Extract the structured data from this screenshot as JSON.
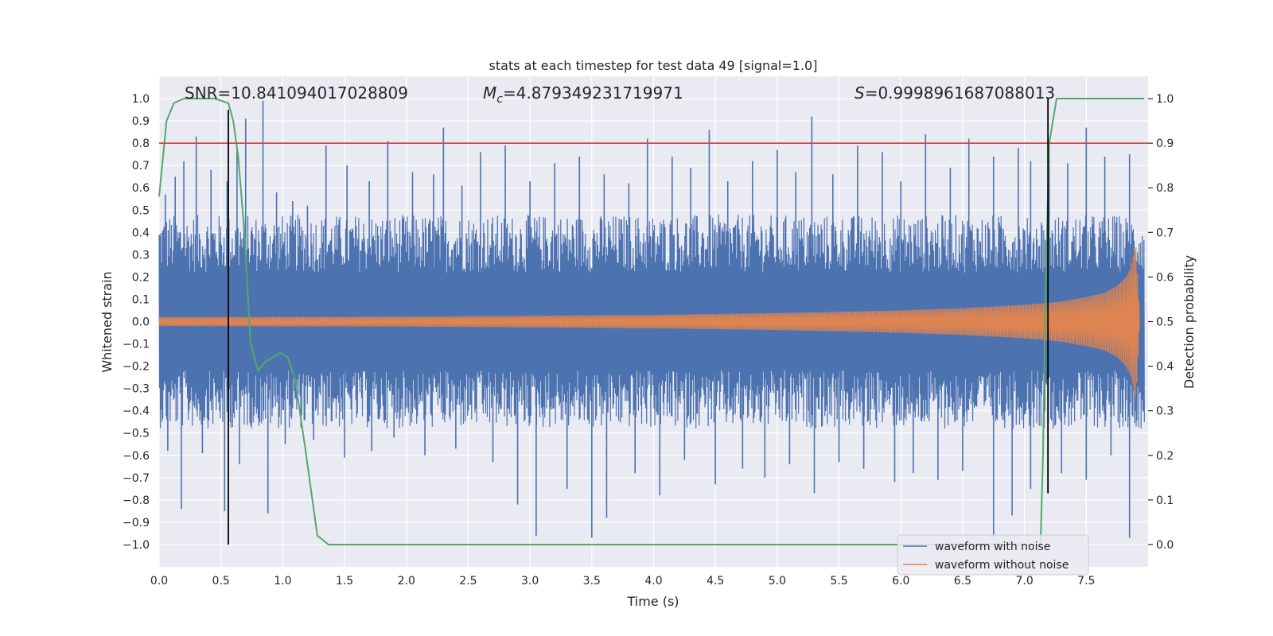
{
  "chart_data": {
    "type": "line",
    "title": "stats at each timestep for test data 49 [signal=1.0]",
    "xlabel": "Time (s)",
    "ylabel": "Whitened strain",
    "y2label": "Detection probability",
    "xlim": [
      0.0,
      8.0
    ],
    "ylim": [
      -1.1,
      1.1
    ],
    "y2lim": [
      -0.05,
      1.05
    ],
    "xticks": [
      "0.0",
      "0.5",
      "1.0",
      "1.5",
      "2.0",
      "2.5",
      "3.0",
      "3.5",
      "4.0",
      "4.5",
      "5.0",
      "5.5",
      "6.0",
      "6.5",
      "7.0",
      "7.5"
    ],
    "yticks": [
      "1.0",
      "0.9",
      "0.8",
      "0.7",
      "0.6",
      "0.5",
      "0.4",
      "0.3",
      "0.2",
      "0.1",
      "0.0",
      "−0.1",
      "−0.2",
      "−0.3",
      "−0.4",
      "−0.5",
      "−0.6",
      "−0.7",
      "−0.8",
      "−0.9",
      "−1.0"
    ],
    "y2ticks": [
      "1.0",
      "0.9",
      "0.8",
      "0.7",
      "0.6",
      "0.5",
      "0.4",
      "0.3",
      "0.2",
      "0.1",
      "0.0"
    ],
    "annotations": {
      "snr": "SNR=10.841094017028809",
      "mc_symbol": "M",
      "mc_sub": "c",
      "mc_value": "=4.879349231719971",
      "s_symbol": "S",
      "s_value": "=0.9998961687088013"
    },
    "threshold": {
      "value": 0.9,
      "axis": "y2",
      "color": "#c44e52"
    },
    "vertical_markers": [
      {
        "x": 0.56,
        "y_top": 0.95,
        "y_bottom": -1.0
      },
      {
        "x": 7.19,
        "y_top": 1.0,
        "y_bottom": -0.77
      }
    ],
    "series": [
      {
        "name": "waveform with noise",
        "color": "#4c72b0",
        "kind": "noise",
        "band_low": -0.4,
        "band_high": 0.4,
        "spikes": [
          {
            "x": 0.05,
            "y": 0.57
          },
          {
            "x": 0.13,
            "y": 0.65
          },
          {
            "x": 0.2,
            "y": 0.72
          },
          {
            "x": 0.3,
            "y": 0.83
          },
          {
            "x": 0.42,
            "y": 0.68
          },
          {
            "x": 0.55,
            "y": 0.63
          },
          {
            "x": 0.63,
            "y": 0.78
          },
          {
            "x": 0.7,
            "y": 0.91
          },
          {
            "x": 0.84,
            "y": 0.99
          },
          {
            "x": 0.95,
            "y": 0.58
          },
          {
            "x": 1.08,
            "y": 0.54
          },
          {
            "x": 1.2,
            "y": 0.52
          },
          {
            "x": 1.35,
            "y": 0.79
          },
          {
            "x": 1.52,
            "y": 0.7
          },
          {
            "x": 1.7,
            "y": 0.63
          },
          {
            "x": 1.85,
            "y": 0.81
          },
          {
            "x": 2.05,
            "y": 0.67
          },
          {
            "x": 2.22,
            "y": 0.66
          },
          {
            "x": 2.3,
            "y": 0.87
          },
          {
            "x": 2.45,
            "y": 0.61
          },
          {
            "x": 2.6,
            "y": 0.76
          },
          {
            "x": 2.8,
            "y": 0.79
          },
          {
            "x": 3.0,
            "y": 0.63
          },
          {
            "x": 3.2,
            "y": 0.71
          },
          {
            "x": 3.4,
            "y": 0.74
          },
          {
            "x": 3.6,
            "y": 0.66
          },
          {
            "x": 3.8,
            "y": 0.62
          },
          {
            "x": 3.95,
            "y": 0.82
          },
          {
            "x": 4.15,
            "y": 0.74
          },
          {
            "x": 4.3,
            "y": 0.69
          },
          {
            "x": 4.45,
            "y": 0.86
          },
          {
            "x": 4.6,
            "y": 0.63
          },
          {
            "x": 4.8,
            "y": 0.72
          },
          {
            "x": 5.0,
            "y": 0.77
          },
          {
            "x": 5.15,
            "y": 0.67
          },
          {
            "x": 5.28,
            "y": 0.92
          },
          {
            "x": 5.45,
            "y": 0.66
          },
          {
            "x": 5.65,
            "y": 0.79
          },
          {
            "x": 5.85,
            "y": 0.76
          },
          {
            "x": 6.0,
            "y": 0.63
          },
          {
            "x": 6.2,
            "y": 0.84
          },
          {
            "x": 6.4,
            "y": 0.69
          },
          {
            "x": 6.55,
            "y": 0.82
          },
          {
            "x": 6.75,
            "y": 0.74
          },
          {
            "x": 6.95,
            "y": 0.78
          },
          {
            "x": 7.05,
            "y": 0.72
          },
          {
            "x": 7.2,
            "y": 0.78
          },
          {
            "x": 7.35,
            "y": 0.71
          },
          {
            "x": 7.5,
            "y": 0.87
          },
          {
            "x": 7.65,
            "y": 0.74
          },
          {
            "x": 7.85,
            "y": 0.75
          },
          {
            "x": 0.07,
            "y": -0.58
          },
          {
            "x": 0.18,
            "y": -0.84
          },
          {
            "x": 0.35,
            "y": -0.59
          },
          {
            "x": 0.53,
            "y": -0.85
          },
          {
            "x": 0.65,
            "y": -0.64
          },
          {
            "x": 0.88,
            "y": -0.86
          },
          {
            "x": 1.02,
            "y": -0.55
          },
          {
            "x": 1.25,
            "y": -0.53
          },
          {
            "x": 1.5,
            "y": -0.61
          },
          {
            "x": 1.72,
            "y": -0.58
          },
          {
            "x": 1.9,
            "y": -0.52
          },
          {
            "x": 2.15,
            "y": -0.6
          },
          {
            "x": 2.4,
            "y": -0.57
          },
          {
            "x": 2.7,
            "y": -0.63
          },
          {
            "x": 2.9,
            "y": -0.82
          },
          {
            "x": 3.05,
            "y": -0.96
          },
          {
            "x": 3.3,
            "y": -0.75
          },
          {
            "x": 3.5,
            "y": -0.97
          },
          {
            "x": 3.62,
            "y": -0.88
          },
          {
            "x": 3.85,
            "y": -0.68
          },
          {
            "x": 4.05,
            "y": -0.78
          },
          {
            "x": 4.25,
            "y": -0.62
          },
          {
            "x": 4.5,
            "y": -0.73
          },
          {
            "x": 4.72,
            "y": -0.66
          },
          {
            "x": 4.9,
            "y": -0.7
          },
          {
            "x": 5.1,
            "y": -0.64
          },
          {
            "x": 5.3,
            "y": -0.77
          },
          {
            "x": 5.5,
            "y": -0.63
          },
          {
            "x": 5.7,
            "y": -0.66
          },
          {
            "x": 5.95,
            "y": -0.72
          },
          {
            "x": 6.1,
            "y": -0.68
          },
          {
            "x": 6.3,
            "y": -0.71
          },
          {
            "x": 6.5,
            "y": -0.67
          },
          {
            "x": 6.75,
            "y": -0.97
          },
          {
            "x": 6.9,
            "y": -0.87
          },
          {
            "x": 7.05,
            "y": -0.75
          },
          {
            "x": 7.3,
            "y": -0.68
          },
          {
            "x": 7.5,
            "y": -0.71
          },
          {
            "x": 7.7,
            "y": -0.6
          },
          {
            "x": 7.85,
            "y": -0.97
          }
        ]
      },
      {
        "name": "waveform without noise",
        "color": "#dd8452",
        "kind": "chirp",
        "points": [
          {
            "x": 0.0,
            "y": 0.02
          },
          {
            "x": 2.0,
            "y": 0.022
          },
          {
            "x": 4.0,
            "y": 0.03
          },
          {
            "x": 5.0,
            "y": 0.038
          },
          {
            "x": 6.0,
            "y": 0.05
          },
          {
            "x": 6.5,
            "y": 0.06
          },
          {
            "x": 7.0,
            "y": 0.075
          },
          {
            "x": 7.3,
            "y": 0.09
          },
          {
            "x": 7.5,
            "y": 0.11
          },
          {
            "x": 7.65,
            "y": 0.13
          },
          {
            "x": 7.75,
            "y": 0.16
          },
          {
            "x": 7.82,
            "y": 0.2
          },
          {
            "x": 7.86,
            "y": 0.24
          },
          {
            "x": 7.9,
            "y": 0.35
          },
          {
            "x": 7.93,
            "y": 0.04
          }
        ]
      },
      {
        "name": "detection probability",
        "color": "#55a868",
        "axis": "y2",
        "points": [
          {
            "x": 0.0,
            "y": 0.78
          },
          {
            "x": 0.06,
            "y": 0.95
          },
          {
            "x": 0.12,
            "y": 0.99
          },
          {
            "x": 0.2,
            "y": 1.0
          },
          {
            "x": 0.45,
            "y": 1.0
          },
          {
            "x": 0.56,
            "y": 0.99
          },
          {
            "x": 0.6,
            "y": 0.95
          },
          {
            "x": 0.64,
            "y": 0.87
          },
          {
            "x": 0.69,
            "y": 0.7
          },
          {
            "x": 0.74,
            "y": 0.45
          },
          {
            "x": 0.8,
            "y": 0.39
          },
          {
            "x": 0.86,
            "y": 0.41
          },
          {
            "x": 0.92,
            "y": 0.42
          },
          {
            "x": 0.98,
            "y": 0.43
          },
          {
            "x": 1.04,
            "y": 0.42
          },
          {
            "x": 1.1,
            "y": 0.37
          },
          {
            "x": 1.18,
            "y": 0.22
          },
          {
            "x": 1.28,
            "y": 0.02
          },
          {
            "x": 1.37,
            "y": 0.0
          },
          {
            "x": 7.13,
            "y": 0.0
          },
          {
            "x": 7.15,
            "y": 0.2
          },
          {
            "x": 7.17,
            "y": 0.55
          },
          {
            "x": 7.2,
            "y": 0.9
          },
          {
            "x": 7.26,
            "y": 1.0
          },
          {
            "x": 7.97,
            "y": 1.0
          }
        ]
      }
    ],
    "legend": {
      "placement": "lower-right",
      "entries": [
        {
          "label": "waveform with noise",
          "color": "#4c72b0"
        },
        {
          "label": "waveform without noise",
          "color": "#dd8452"
        }
      ]
    },
    "grid": true
  }
}
